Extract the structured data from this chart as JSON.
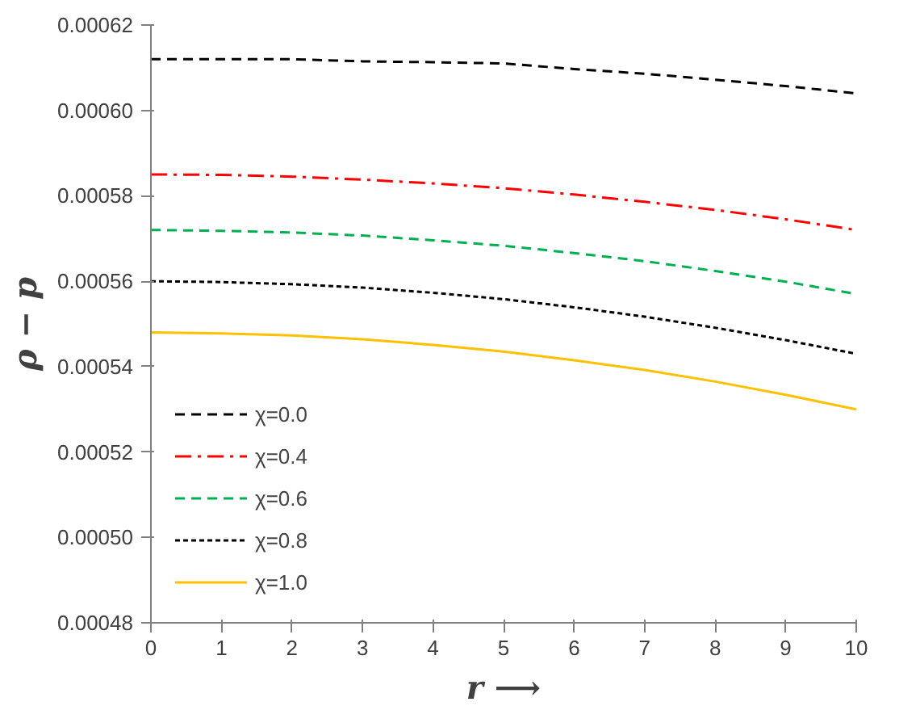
{
  "chart_data": {
    "type": "line",
    "xlabel": "r ⟶",
    "ylabel": "ρ − p",
    "x": [
      0,
      1,
      2,
      3,
      4,
      5,
      6,
      7,
      8,
      9,
      10
    ],
    "xlim": [
      0,
      10
    ],
    "xticks": [
      0,
      1,
      2,
      3,
      4,
      5,
      6,
      7,
      8,
      9,
      10
    ],
    "ylim": [
      0.00048,
      0.00062
    ],
    "yticks": [
      0.00048,
      {
        "value": 0.0005,
        "label": "0.00050"
      },
      0.00052,
      0.00054,
      0.00056,
      0.00058,
      {
        "value": 0.0006,
        "label": "0.00060"
      },
      0.00062
    ],
    "grid": false,
    "legend": "bottom left",
    "marker": "none",
    "series": [
      {
        "name": "χ=0.0",
        "color": "#000000",
        "line_style": "dashed",
        "values": [
          0.000612,
          0.000612,
          0.000612,
          0.0006115,
          0.0006113,
          0.000611,
          0.0006097,
          0.0006086,
          0.0006072,
          0.0006057,
          0.000604
        ]
      },
      {
        "name": "χ=0.4",
        "color": "#ff0000",
        "line_style": "dashdot",
        "values": [
          0.000585,
          0.0005849,
          0.0005845,
          0.0005838,
          0.0005829,
          0.0005818,
          0.0005803,
          0.0005786,
          0.0005767,
          0.0005745,
          0.000572
        ]
      },
      {
        "name": "χ=0.6",
        "color": "#00b050",
        "line_style": "dashed",
        "values": [
          0.000572,
          0.0005718,
          0.0005714,
          0.0005707,
          0.0005696,
          0.0005683,
          0.0005666,
          0.0005647,
          0.0005624,
          0.0005599,
          0.000557
        ]
      },
      {
        "name": "χ=0.8",
        "color": "#000000",
        "line_style": "dotted",
        "values": [
          0.00056,
          0.0005598,
          0.0005593,
          0.0005585,
          0.0005573,
          0.0005558,
          0.0005539,
          0.0005517,
          0.0005491,
          0.0005462,
          0.000543
        ]
      },
      {
        "name": "χ=1.0",
        "color": "#ffc000",
        "line_style": "solid",
        "values": [
          0.000548,
          0.0005478,
          0.0005473,
          0.0005464,
          0.0005451,
          0.0005435,
          0.0005415,
          0.0005392,
          0.0005365,
          0.0005334,
          0.00053
        ]
      }
    ]
  }
}
